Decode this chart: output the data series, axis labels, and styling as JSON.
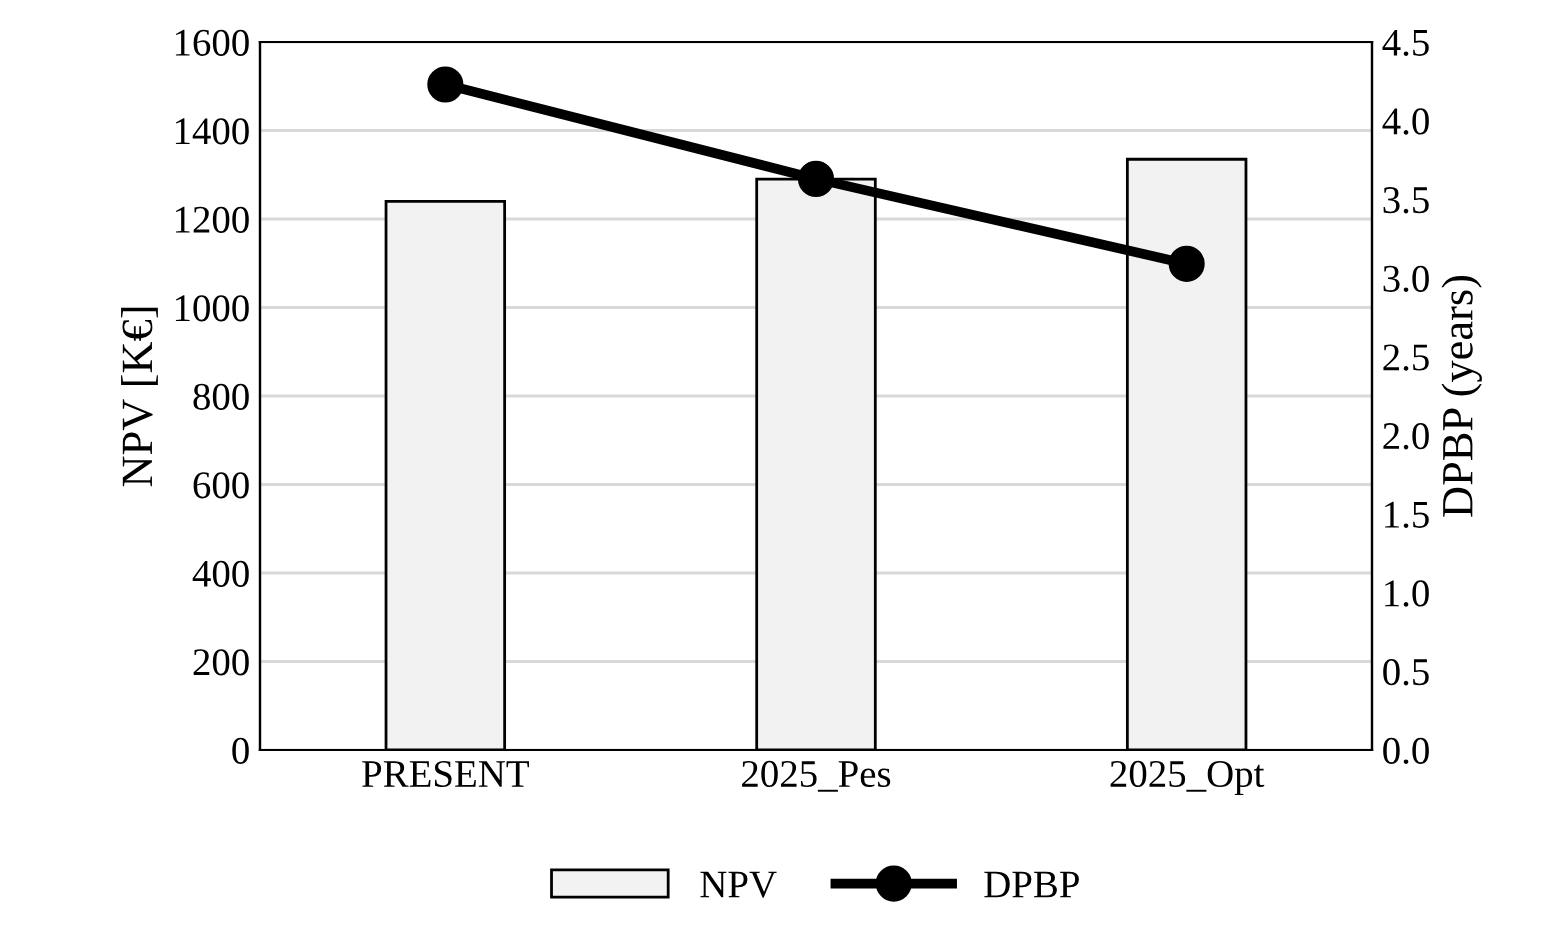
{
  "chart_data": {
    "type": "bar",
    "categories": [
      "PRESENT",
      "2025_Pes",
      "2025_Opt"
    ],
    "series": [
      {
        "name": "NPV",
        "color": "#f2f2f2",
        "values": [
          1240,
          1290,
          1335
        ]
      },
      {
        "name": "DPBP",
        "type": "line",
        "axis": "y2",
        "color": "#000000",
        "marker": "circle",
        "values": [
          4.23,
          3.63,
          3.09
        ]
      }
    ],
    "ylabel": "NPV [K€]",
    "y2label": "DPBP (years)",
    "ylim": [
      0,
      1600
    ],
    "yticks": [
      0,
      200,
      400,
      600,
      800,
      1000,
      1200,
      1400,
      1600
    ],
    "y2lim": [
      0,
      4.5
    ],
    "y2ticks": [
      {
        "value": 0,
        "label": "0.0"
      },
      {
        "value": 0.5,
        "label": "0.5"
      },
      {
        "value": 1,
        "label": "1.0"
      },
      {
        "value": 1.5,
        "label": "1.5"
      },
      {
        "value": 2,
        "label": "2.0"
      },
      {
        "value": 2.5,
        "label": "2.5"
      },
      {
        "value": 3,
        "label": "3.0"
      },
      {
        "value": 3.5,
        "label": "3.5"
      },
      {
        "value": 4,
        "label": "4.0"
      },
      {
        "value": 4.5,
        "label": "4.5"
      }
    ],
    "grid": "y",
    "legend": "bottom"
  }
}
